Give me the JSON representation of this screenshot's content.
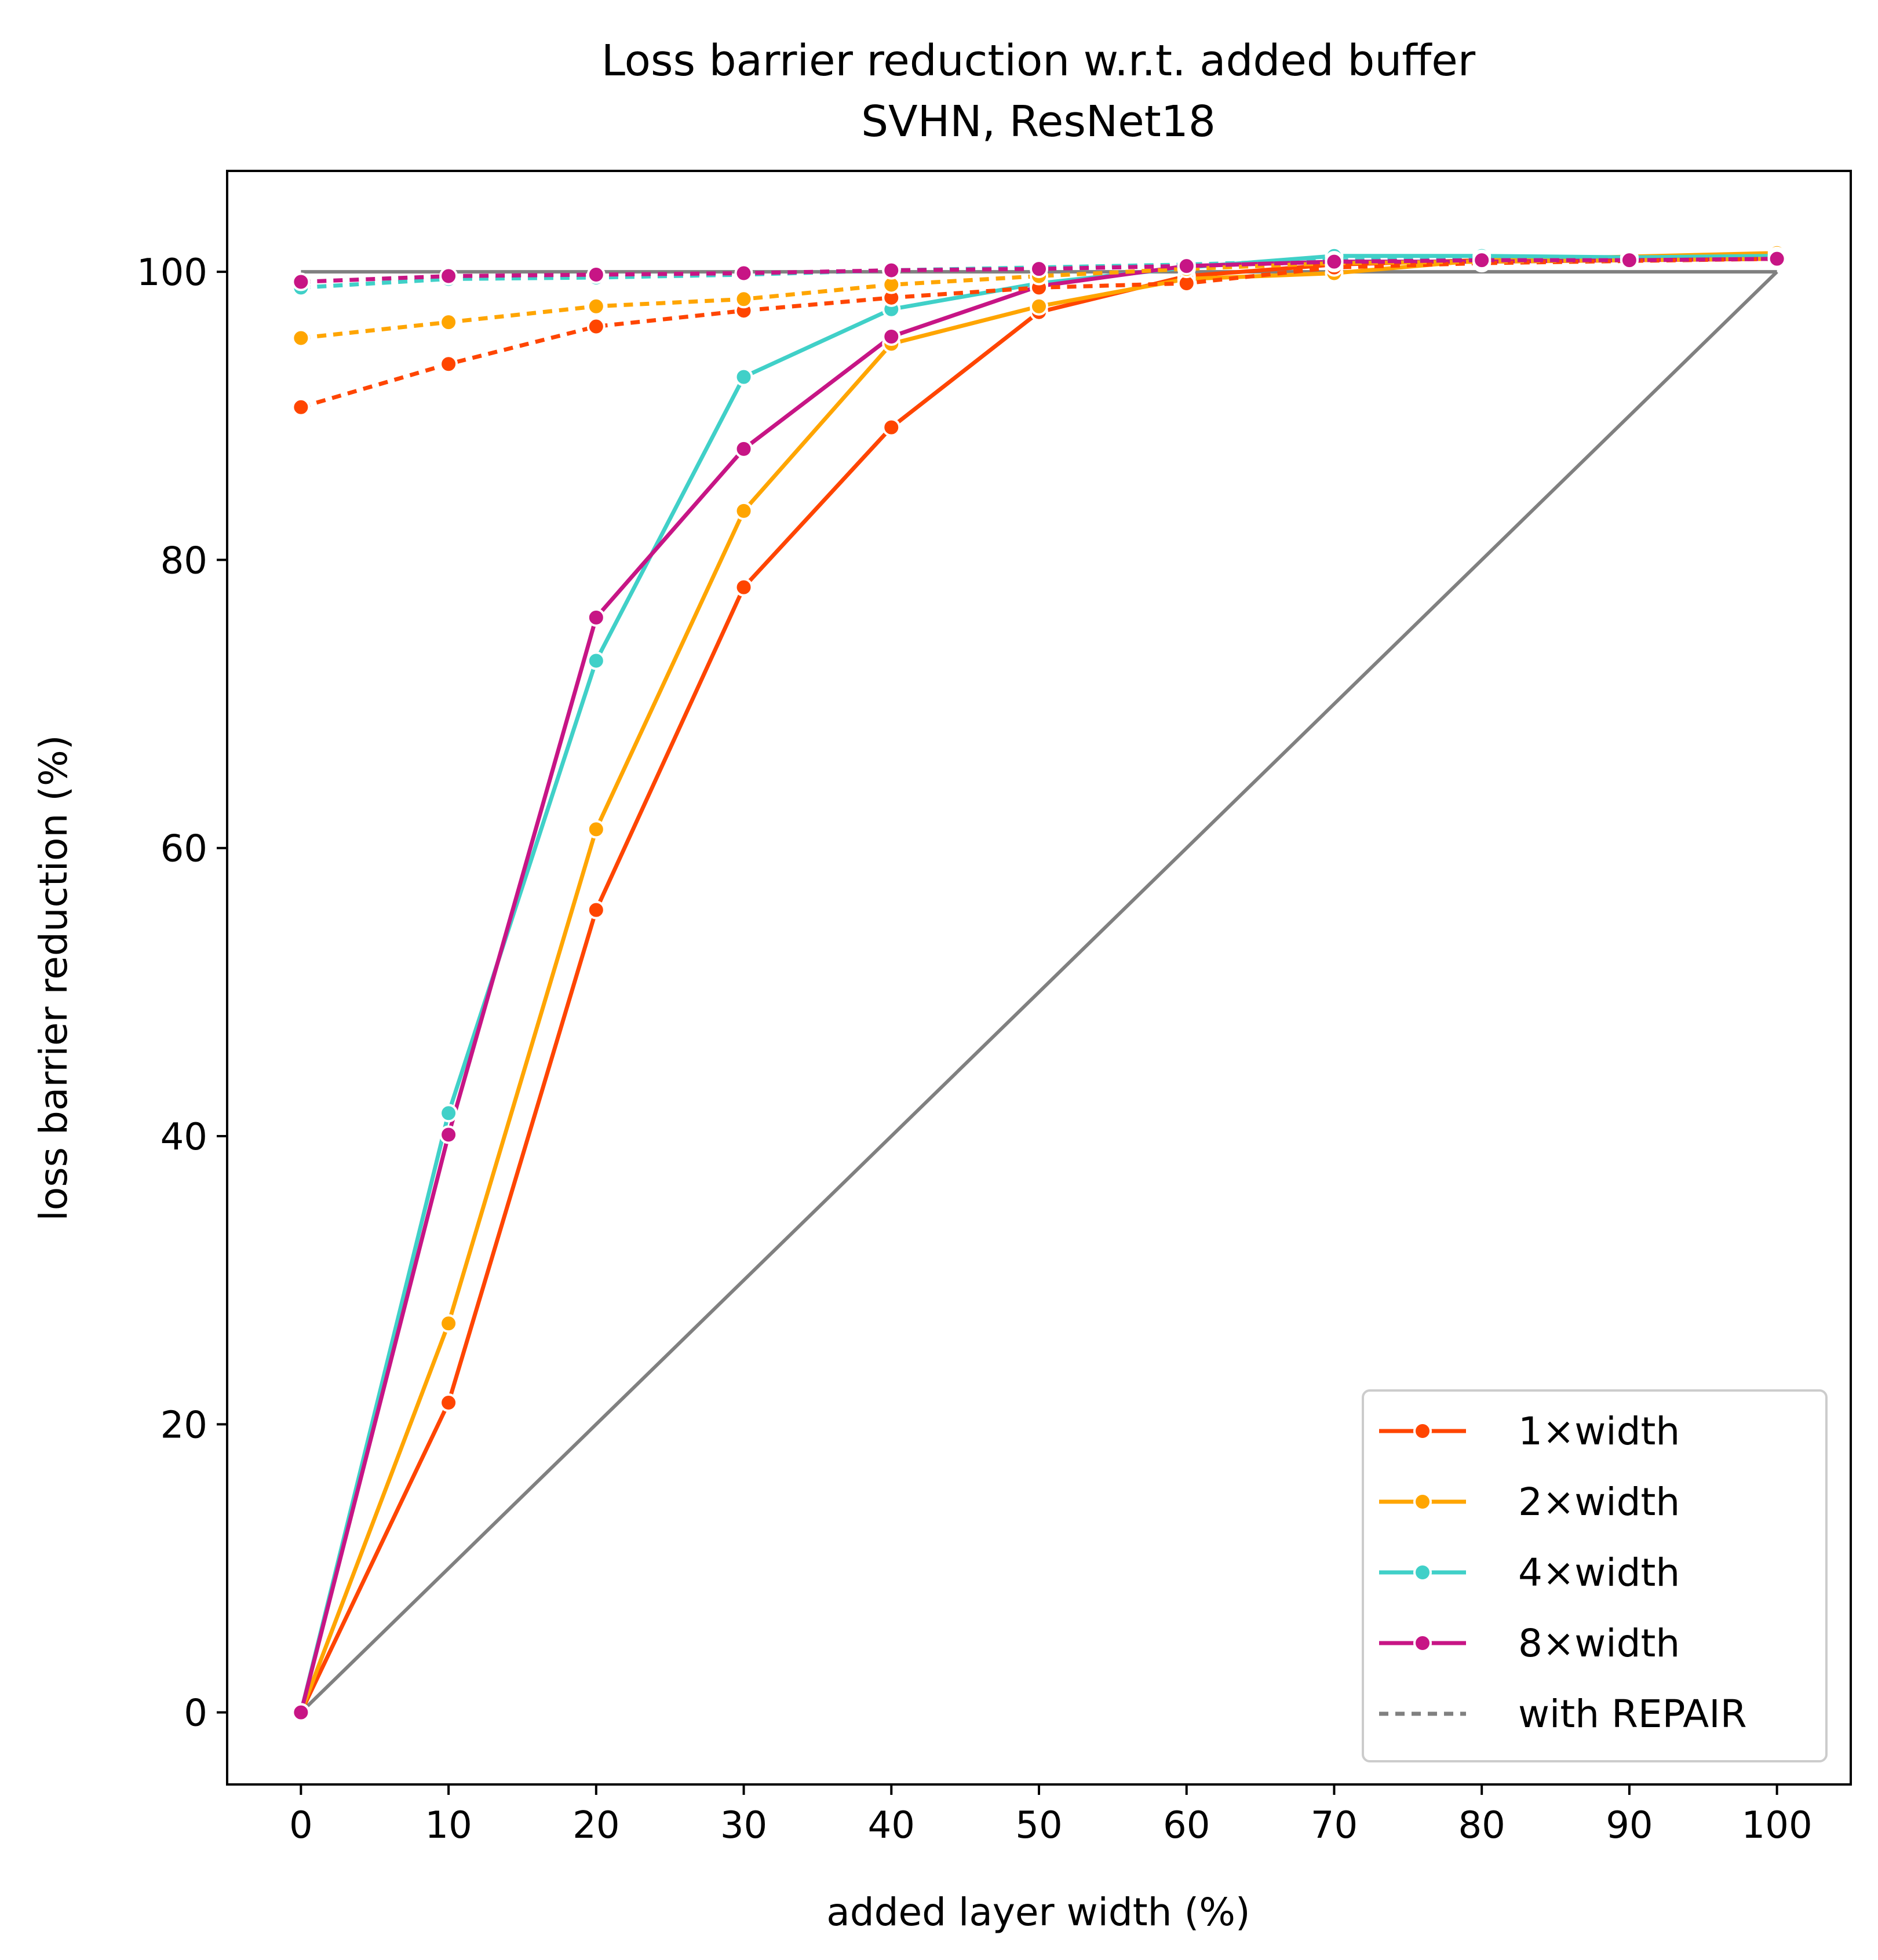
{
  "chart_data": {
    "type": "line",
    "title": "Loss barrier reduction w.r.t. added buffer",
    "subtitle": "SVHN, ResNet18",
    "xlabel": "added layer width (%)",
    "ylabel": "loss barrier reduction (%)",
    "xlim": [
      -5,
      105
    ],
    "ylim": [
      -5,
      107
    ],
    "xticks": [
      0,
      10,
      20,
      30,
      40,
      50,
      60,
      70,
      80,
      90,
      100
    ],
    "yticks": [
      0,
      20,
      40,
      60,
      80,
      100
    ],
    "grid": false,
    "legend_position": "lower-right",
    "x": [
      0,
      10,
      20,
      30,
      40,
      50,
      60,
      70,
      80,
      90,
      100
    ],
    "reference_lines": [
      {
        "label": "",
        "color": "#808080",
        "style": "solid",
        "points": [
          [
            0,
            0
          ],
          [
            100,
            100
          ]
        ]
      },
      {
        "label": "",
        "color": "#808080",
        "style": "solid",
        "points": [
          [
            0,
            100
          ],
          [
            100,
            100
          ]
        ]
      }
    ],
    "series": [
      {
        "name": "1×width",
        "color": "#ff4500",
        "style": "solid",
        "values": [
          0,
          21.5,
          55.7,
          78.1,
          89.2,
          97.2,
          99.7,
          100.5,
          100.8,
          null,
          101.0
        ]
      },
      {
        "name": "2×width",
        "color": "#ffa500",
        "style": "solid",
        "values": [
          0,
          27.0,
          61.3,
          83.4,
          95.0,
          97.6,
          99.5,
          99.9,
          100.8,
          null,
          101.3
        ]
      },
      {
        "name": "4×width",
        "color": "#40d0c8",
        "style": "solid",
        "values": [
          0,
          41.6,
          73.0,
          92.7,
          97.4,
          99.2,
          100.3,
          101.1,
          101.1,
          101.0,
          101.1
        ]
      },
      {
        "name": "8×width",
        "color": "#c71585",
        "style": "solid",
        "values": [
          0,
          40.1,
          76.0,
          87.7,
          95.5,
          99.0,
          100.4,
          100.7,
          100.7,
          100.8,
          100.9
        ]
      },
      {
        "name": "1×width",
        "color": "#ff4500",
        "style": "dotted",
        "legend": false,
        "values": [
          90.6,
          93.6,
          96.2,
          97.3,
          98.2,
          98.9,
          99.2,
          100.3,
          100.6,
          null,
          100.9
        ]
      },
      {
        "name": "2×width",
        "color": "#ffa500",
        "style": "dotted",
        "legend": false,
        "values": [
          95.4,
          96.5,
          97.6,
          98.1,
          99.1,
          99.7,
          100.2,
          100.6,
          100.7,
          null,
          100.9
        ]
      },
      {
        "name": "4×width",
        "color": "#40d0c8",
        "style": "dotted",
        "legend": false,
        "values": [
          98.9,
          99.5,
          99.6,
          99.8,
          100.1,
          100.3,
          100.5,
          100.8,
          100.9,
          100.9,
          101.0
        ]
      },
      {
        "name": "8×width",
        "color": "#c71585",
        "style": "dotted",
        "legend": false,
        "values": [
          99.3,
          99.7,
          99.8,
          99.9,
          100.1,
          100.2,
          100.4,
          100.7,
          100.8,
          100.8,
          100.9
        ]
      }
    ],
    "legend": [
      {
        "label": "1×width",
        "color": "#ff4500",
        "style": "solid",
        "marker": true
      },
      {
        "label": "2×width",
        "color": "#ffa500",
        "style": "solid",
        "marker": true
      },
      {
        "label": "4×width",
        "color": "#40d0c8",
        "style": "solid",
        "marker": true
      },
      {
        "label": "8×width",
        "color": "#c71585",
        "style": "solid",
        "marker": true
      },
      {
        "label": "with REPAIR",
        "color": "#808080",
        "style": "dotted",
        "marker": false
      }
    ]
  }
}
